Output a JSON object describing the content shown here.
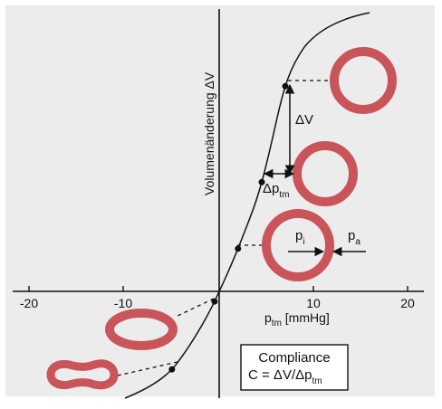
{
  "colors": {
    "panel_bg": "#ececec",
    "vessel": "#c9555a",
    "ink": "#111111",
    "box_bg": "#ffffff"
  },
  "chart_data": {
    "type": "line",
    "xlabel_main": "p",
    "xlabel_sub": "tm",
    "xlabel_unit": " [mmHg]",
    "ylabel": "Volumenänderung ΔV",
    "x_ticks": [
      "-20",
      "-10",
      "10",
      "20"
    ],
    "x_tick_values": [
      -20,
      -10,
      10,
      20
    ],
    "xlim": [
      -20,
      20
    ],
    "points_x": [
      -5,
      -0.5,
      2,
      4.5,
      7
    ]
  },
  "annotations": {
    "delta_v": "ΔV",
    "delta_ptm_main": "Δp",
    "delta_ptm_sub": "tm",
    "pi_main": "p",
    "pi_sub": "i",
    "pa_main": "p",
    "pa_sub": "a"
  },
  "compliance_box": {
    "title": "Compliance",
    "formula_main": "C = ΔV/Δp",
    "formula_sub": "tm"
  },
  "vessel_shapes": [
    "circle-large",
    "circle-medium",
    "circle-small-pressures",
    "ellipse-flattened",
    "dumbbell-collapsed"
  ]
}
